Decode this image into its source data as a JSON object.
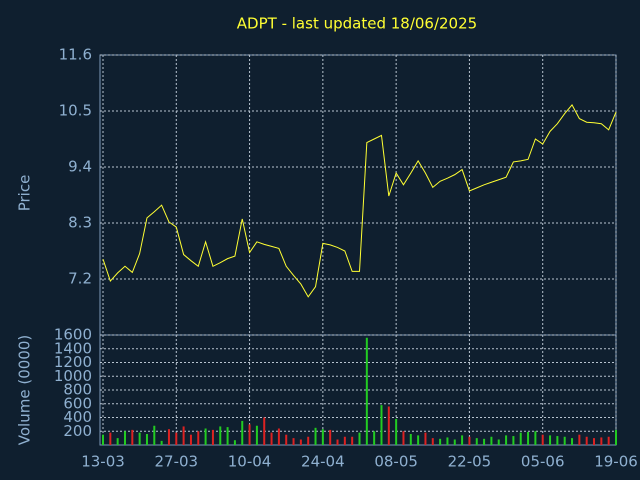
{
  "chart_data": [
    {
      "type": "line",
      "title": "ADPT - last updated 18/06/2025",
      "y_label": "Price",
      "color": "#ffff33",
      "values": [
        7.59,
        7.16,
        7.32,
        7.45,
        7.33,
        7.7,
        8.4,
        8.52,
        8.65,
        8.32,
        8.22,
        7.68,
        7.56,
        7.45,
        7.93,
        7.45,
        7.52,
        7.6,
        7.65,
        8.38,
        7.72,
        7.93,
        7.88,
        7.84,
        7.8,
        7.45,
        7.27,
        7.1,
        6.85,
        7.05,
        7.9,
        7.87,
        7.82,
        7.75,
        7.35,
        7.35,
        9.88,
        9.95,
        10.02,
        8.83,
        9.28,
        9.05,
        9.28,
        9.52,
        9.28,
        9.0,
        9.12,
        9.18,
        9.25,
        9.35,
        8.93,
        8.99,
        9.05,
        9.1,
        9.15,
        9.2,
        9.5,
        9.52,
        9.55,
        9.95,
        9.85,
        10.1,
        10.25,
        10.45,
        10.62,
        10.35,
        10.28,
        10.27,
        10.25,
        10.13,
        10.48
      ],
      "ylim": [
        6.1,
        11.6
      ],
      "yticks": [
        7.2,
        8.3,
        9.4,
        10.5,
        11.6
      ],
      "grid": true
    },
    {
      "type": "bar",
      "y_label": "Volume (0000)",
      "up_color": "#22cc22",
      "down_color": "#dd2222",
      "categories": [
        "13-03",
        null,
        null,
        null,
        null,
        null,
        null,
        null,
        null,
        null,
        "27-03",
        null,
        null,
        null,
        null,
        null,
        null,
        null,
        null,
        null,
        "10-04",
        null,
        null,
        null,
        null,
        null,
        null,
        null,
        null,
        null,
        "24-04",
        null,
        null,
        null,
        null,
        null,
        null,
        null,
        null,
        null,
        "08-05",
        null,
        null,
        null,
        null,
        null,
        null,
        null,
        null,
        null,
        "22-05",
        null,
        null,
        null,
        null,
        null,
        null,
        null,
        null,
        null,
        "05-06",
        null,
        null,
        null,
        null,
        null,
        null,
        null,
        null,
        null,
        "19-06"
      ],
      "values": [
        150,
        180,
        100,
        200,
        220,
        180,
        160,
        280,
        60,
        230,
        180,
        270,
        150,
        200,
        240,
        220,
        270,
        260,
        70,
        350,
        300,
        280,
        400,
        180,
        240,
        150,
        100,
        80,
        120,
        250,
        230,
        220,
        80,
        120,
        120,
        180,
        1560,
        200,
        580,
        560,
        380,
        200,
        160,
        140,
        180,
        100,
        90,
        110,
        80,
        140,
        120,
        100,
        90,
        120,
        80,
        140,
        130,
        180,
        190,
        200,
        150,
        140,
        130,
        120,
        100,
        150,
        120,
        100,
        110,
        120,
        220
      ],
      "ylim": [
        0,
        1600
      ],
      "yticks": [
        200,
        400,
        600,
        800,
        1000,
        1200,
        1400,
        1600
      ],
      "grid": true
    }
  ]
}
